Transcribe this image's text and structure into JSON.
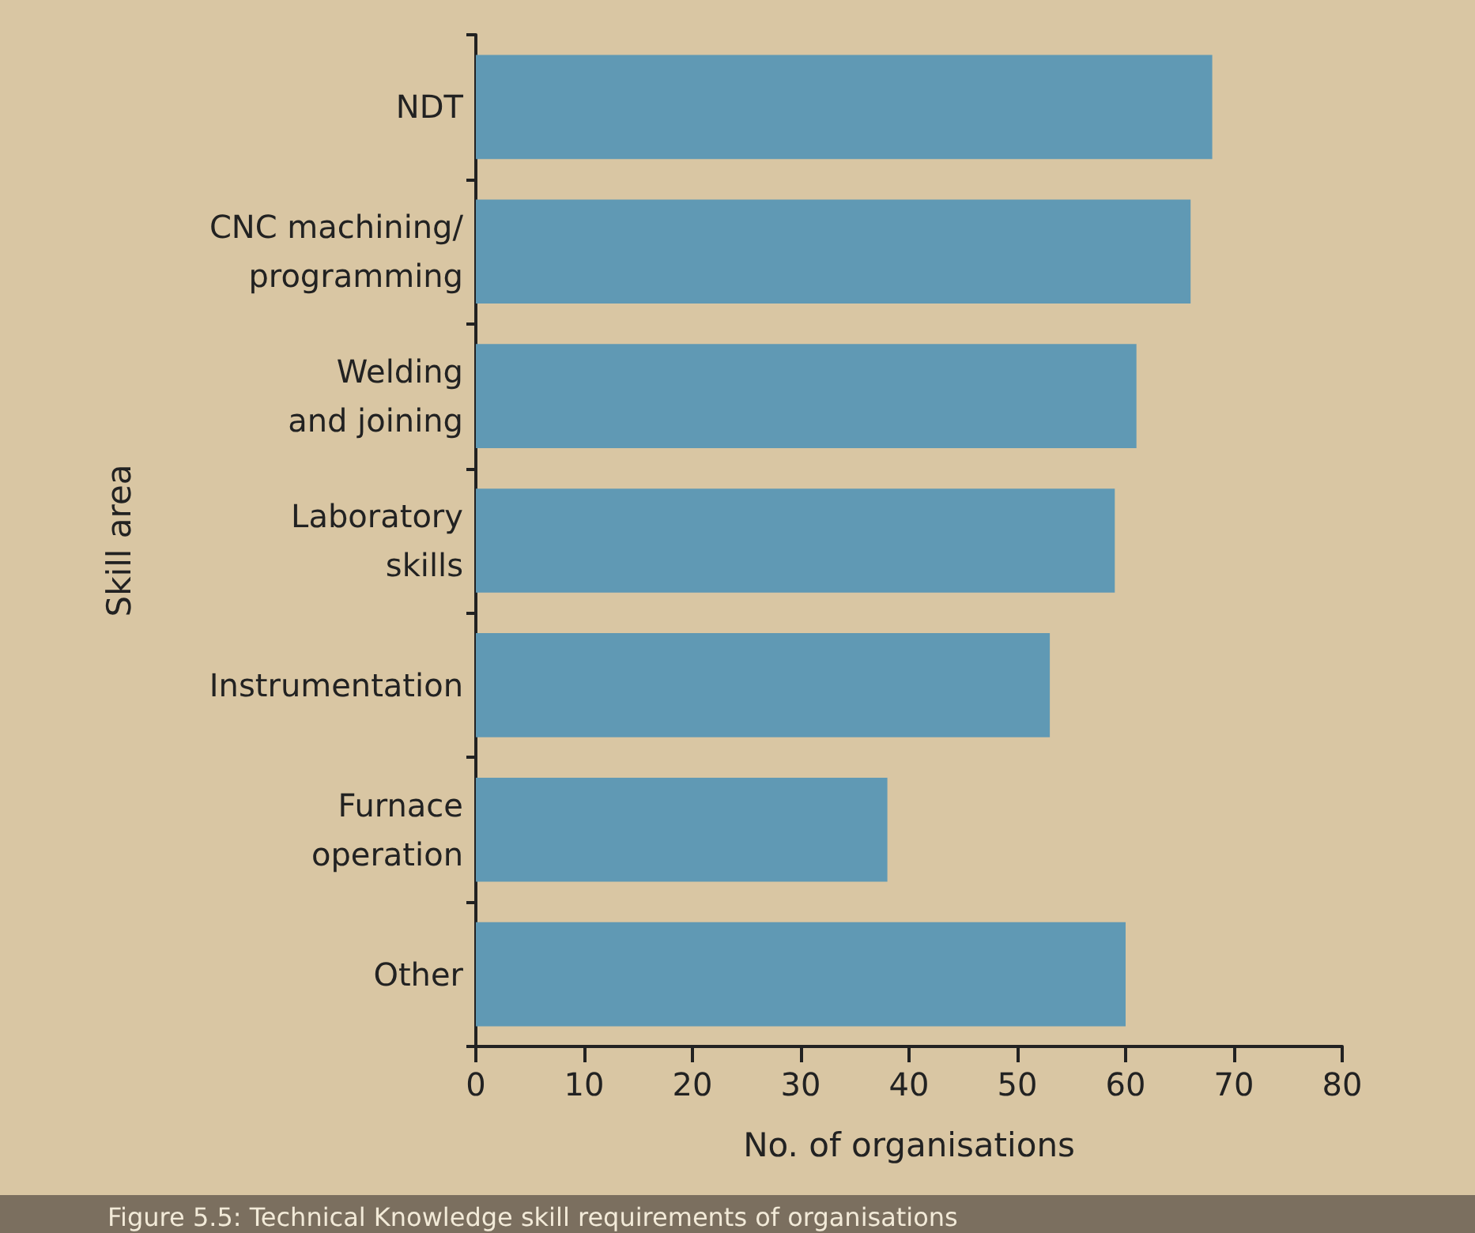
{
  "chart_data": {
    "type": "bar",
    "orientation": "horizontal",
    "categories": [
      "NDT",
      "CNC machining/\nprogramming",
      "Welding\nand joining",
      "Laboratory\nskills",
      "Instrumentation",
      "Furnace\noperation",
      "Other"
    ],
    "values": [
      68,
      66,
      61,
      59,
      53,
      38,
      60
    ],
    "color": "#6099b4",
    "xlim": [
      0,
      80
    ],
    "xticks": [
      0,
      10,
      20,
      30,
      40,
      50,
      60,
      70,
      80
    ],
    "xlabel": "No. of organisations",
    "ylabel": "Skill area",
    "annotations": [
      "Figure 5.5: Technical Knowledge skill requirements of organisations"
    ],
    "grid": false
  }
}
